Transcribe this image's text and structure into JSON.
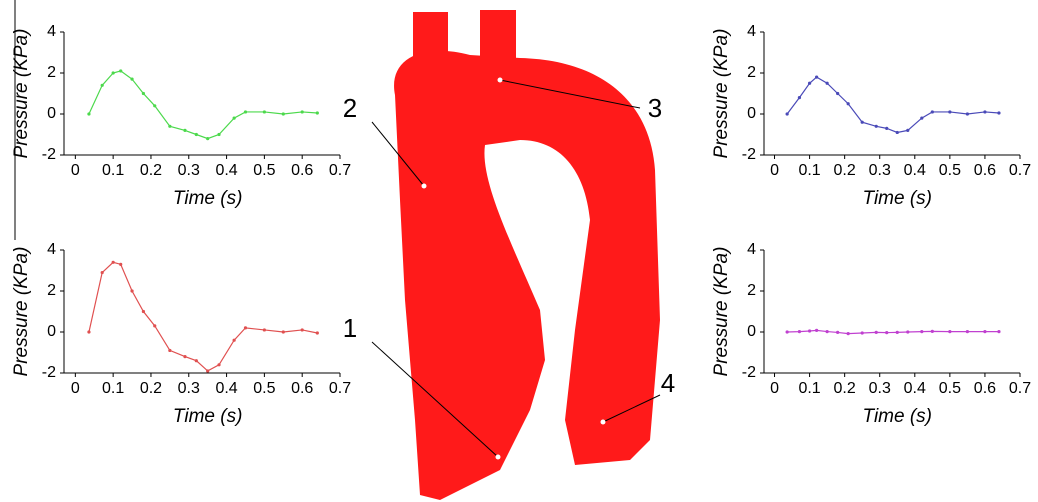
{
  "chart_data": [
    {
      "type": "line",
      "xlabel": "Time (s)",
      "ylabel": "Pressure (KPa)",
      "color": "#4cd94c",
      "x": [
        0.036,
        0.071,
        0.1,
        0.12,
        0.15,
        0.18,
        0.21,
        0.25,
        0.29,
        0.32,
        0.35,
        0.38,
        0.42,
        0.45,
        0.5,
        0.55,
        0.6,
        0.64
      ],
      "values": [
        0,
        1.4,
        2.0,
        2.1,
        1.7,
        1.0,
        0.4,
        -0.6,
        -0.8,
        -1.0,
        -1.2,
        -1.0,
        -0.2,
        0.1,
        0.1,
        0.0,
        0.1,
        0.05
      ],
      "xlim": [
        -0.03,
        0.7
      ],
      "ylim": [
        -2,
        4
      ],
      "xticks": [
        0,
        0.1,
        0.2,
        0.3,
        0.4,
        0.5,
        0.6,
        0.7
      ],
      "yticks": [
        -2,
        0,
        2,
        4
      ]
    },
    {
      "type": "line",
      "xlabel": "Time (s)",
      "ylabel": "Pressure (KPa)",
      "color": "#e05050",
      "x": [
        0.036,
        0.071,
        0.1,
        0.12,
        0.15,
        0.18,
        0.21,
        0.25,
        0.29,
        0.32,
        0.35,
        0.38,
        0.42,
        0.45,
        0.5,
        0.55,
        0.6,
        0.64
      ],
      "values": [
        0,
        2.9,
        3.4,
        3.3,
        2.0,
        1.0,
        0.3,
        -0.9,
        -1.2,
        -1.4,
        -1.9,
        -1.6,
        -0.4,
        0.2,
        0.1,
        0.0,
        0.1,
        -0.05
      ],
      "xlim": [
        -0.03,
        0.7
      ],
      "ylim": [
        -2,
        4
      ],
      "xticks": [
        0,
        0.1,
        0.2,
        0.3,
        0.4,
        0.5,
        0.6,
        0.7
      ],
      "yticks": [
        -2,
        0,
        2,
        4
      ]
    },
    {
      "type": "line",
      "xlabel": "Time (s)",
      "ylabel": "Pressure (KPa)",
      "color": "#4a4ab8",
      "x": [
        0.036,
        0.071,
        0.1,
        0.12,
        0.15,
        0.18,
        0.21,
        0.25,
        0.29,
        0.32,
        0.35,
        0.38,
        0.42,
        0.45,
        0.5,
        0.55,
        0.6,
        0.64
      ],
      "values": [
        0,
        0.8,
        1.5,
        1.8,
        1.5,
        1.0,
        0.5,
        -0.4,
        -0.6,
        -0.7,
        -0.9,
        -0.8,
        -0.2,
        0.1,
        0.1,
        0.0,
        0.1,
        0.05
      ],
      "xlim": [
        -0.03,
        0.7
      ],
      "ylim": [
        -2,
        4
      ],
      "xticks": [
        0,
        0.1,
        0.2,
        0.3,
        0.4,
        0.5,
        0.6,
        0.7
      ],
      "yticks": [
        -2,
        0,
        2,
        4
      ]
    },
    {
      "type": "line",
      "xlabel": "Time (s)",
      "ylabel": "Pressure (KPa)",
      "color": "#c040d0",
      "x": [
        0.036,
        0.071,
        0.1,
        0.12,
        0.15,
        0.18,
        0.21,
        0.25,
        0.29,
        0.32,
        0.35,
        0.38,
        0.42,
        0.45,
        0.5,
        0.55,
        0.6,
        0.64
      ],
      "values": [
        0,
        0.02,
        0.05,
        0.08,
        0.02,
        -0.02,
        -0.08,
        -0.05,
        -0.02,
        -0.03,
        -0.02,
        0,
        0.02,
        0.03,
        0.02,
        0.02,
        0.02,
        0.02
      ],
      "xlim": [
        -0.03,
        0.7
      ],
      "ylim": [
        -2,
        4
      ],
      "xticks": [
        0,
        0.1,
        0.2,
        0.3,
        0.4,
        0.5,
        0.6,
        0.7
      ],
      "yticks": [
        -2,
        0,
        2,
        4
      ]
    }
  ],
  "figure": {
    "labels": [
      "1",
      "2",
      "3",
      "4"
    ]
  }
}
